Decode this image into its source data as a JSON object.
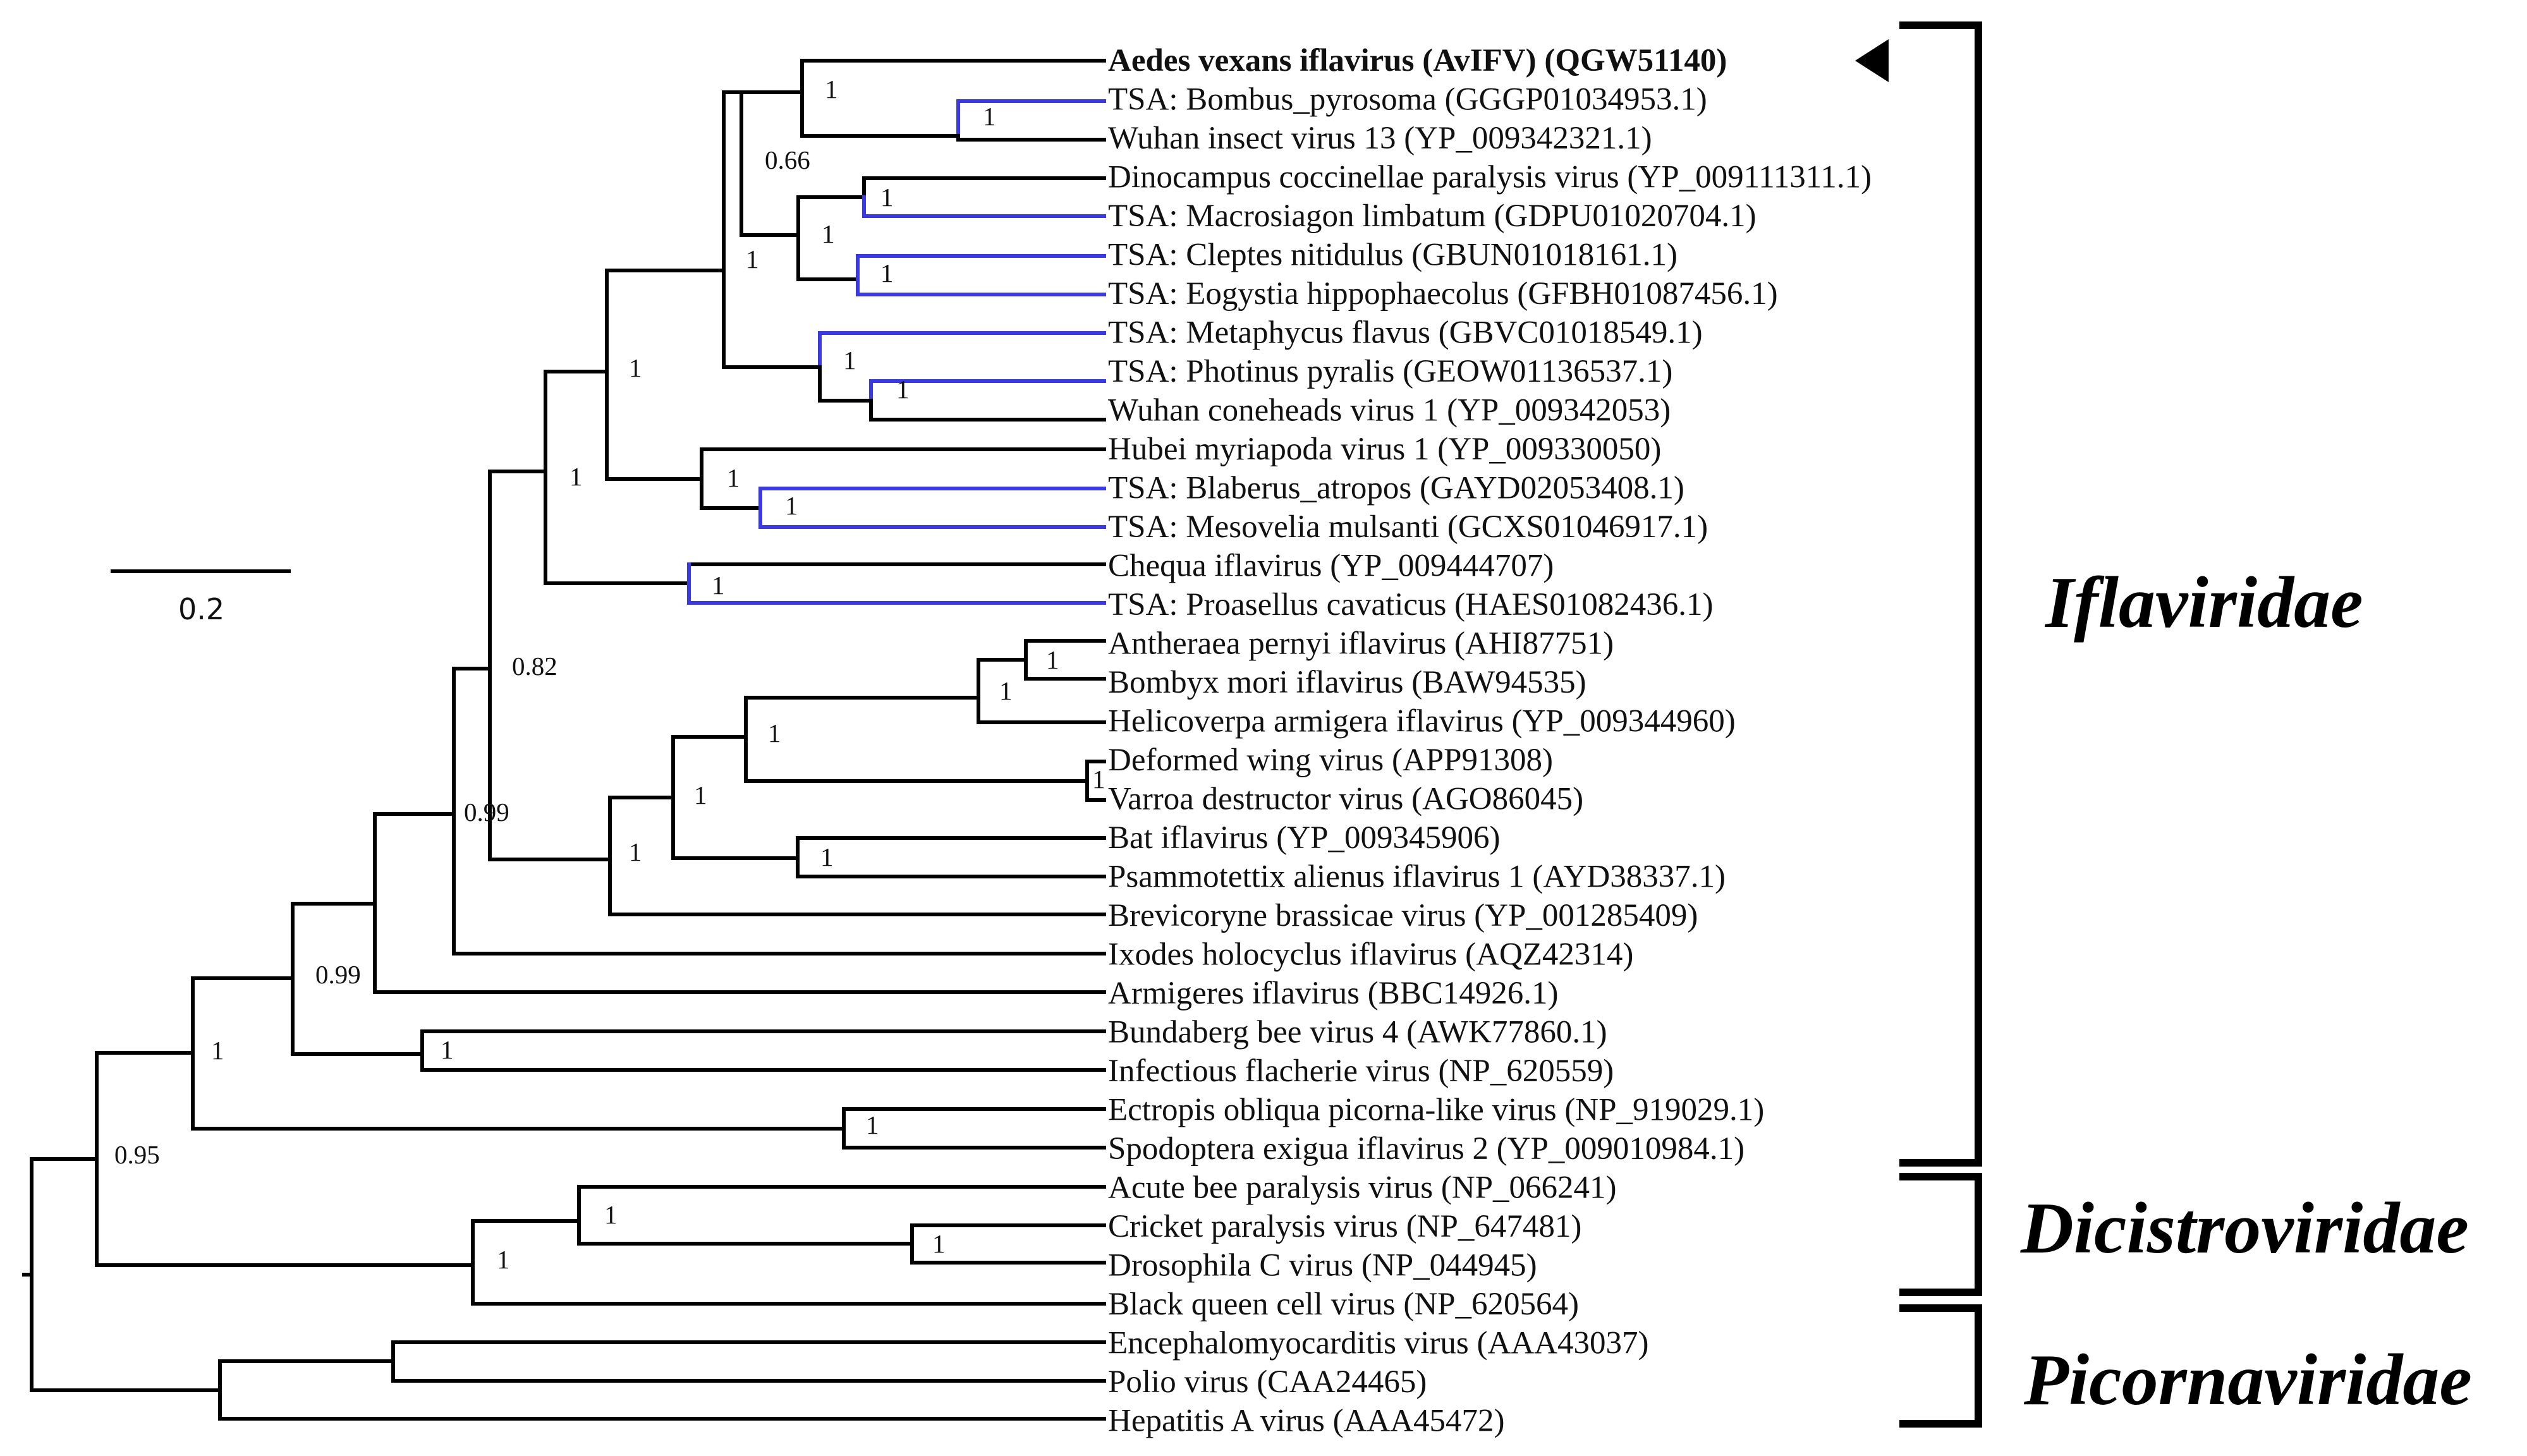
{
  "figure": {
    "type": "phylogenetic-tree",
    "scale_bar_label": "0.2",
    "highlight_color": "#3a3ae0"
  },
  "tips": [
    "Aedes vexans iflavirus (AvIFV) (QGW51140)",
    "TSA: Bombus_pyrosoma (GGGP01034953.1)",
    "Wuhan insect virus 13 (YP_009342321.1)",
    "Dinocampus coccinellae paralysis virus (YP_009111311.1)",
    "TSA: Macrosiagon limbatum (GDPU01020704.1)",
    "TSA: Cleptes nitidulus (GBUN01018161.1)",
    "TSA: Eogystia hippophaecolus (GFBH01087456.1)",
    "TSA: Metaphycus flavus (GBVC01018549.1)",
    "TSA: Photinus pyralis (GEOW01136537.1)",
    "Wuhan coneheads virus 1 (YP_009342053)",
    "Hubei myriapoda virus 1 (YP_009330050)",
    "TSA: Blaberus_atropos (GAYD02053408.1)",
    "TSA: Mesovelia mulsanti (GCXS01046917.1)",
    "Chequa iflavirus (YP_009444707)",
    "TSA: Proasellus cavaticus (HAES01082436.1)",
    "Antheraea pernyi iflavirus (AHI87751)",
    "Bombyx mori iflavirus (BAW94535)",
    "Helicoverpa armigera iflavirus (YP_009344960)",
    "Deformed wing virus (APP91308)",
    "Varroa destructor virus (AGO86045)",
    "Bat iflavirus (YP_009345906)",
    "Psammotettix alienus iflavirus 1 (AYD38337.1)",
    "Brevicoryne brassicae virus (YP_001285409)",
    "Ixodes holocyclus iflavirus (AQZ42314)",
    "Armigeres iflavirus (BBC14926.1)",
    "Bundaberg bee virus 4 (AWK77860.1)",
    "Infectious flacherie virus (NP_620559)",
    "Ectropis obliqua picorna-like virus (NP_919029.1)",
    "Spodoptera exigua iflavirus 2 (YP_009010984.1)",
    "Acute bee paralysis virus (NP_066241)",
    "Cricket paralysis virus (NP_647481)",
    "Drosophila C virus (NP_044945)",
    "Black queen cell virus (NP_620564)",
    "Encephalomyocarditis virus (AAA43037)",
    "Polio virus (CAA24465)",
    "Hepatitis A virus (AAA45472)"
  ],
  "support_values": [
    "1",
    "1",
    "0.66",
    "1",
    "1",
    "1",
    "1",
    "1",
    "1",
    "1",
    "1",
    "1",
    "1",
    "0.82",
    "1",
    "1",
    "1",
    "1",
    "1",
    "1",
    "1",
    "1",
    "0.99",
    "0.99",
    "1",
    "1",
    "0.95",
    "1",
    "1",
    "1",
    "1"
  ],
  "families": [
    "Iflaviridae",
    "Dicistroviridae",
    "Picornaviridae"
  ]
}
